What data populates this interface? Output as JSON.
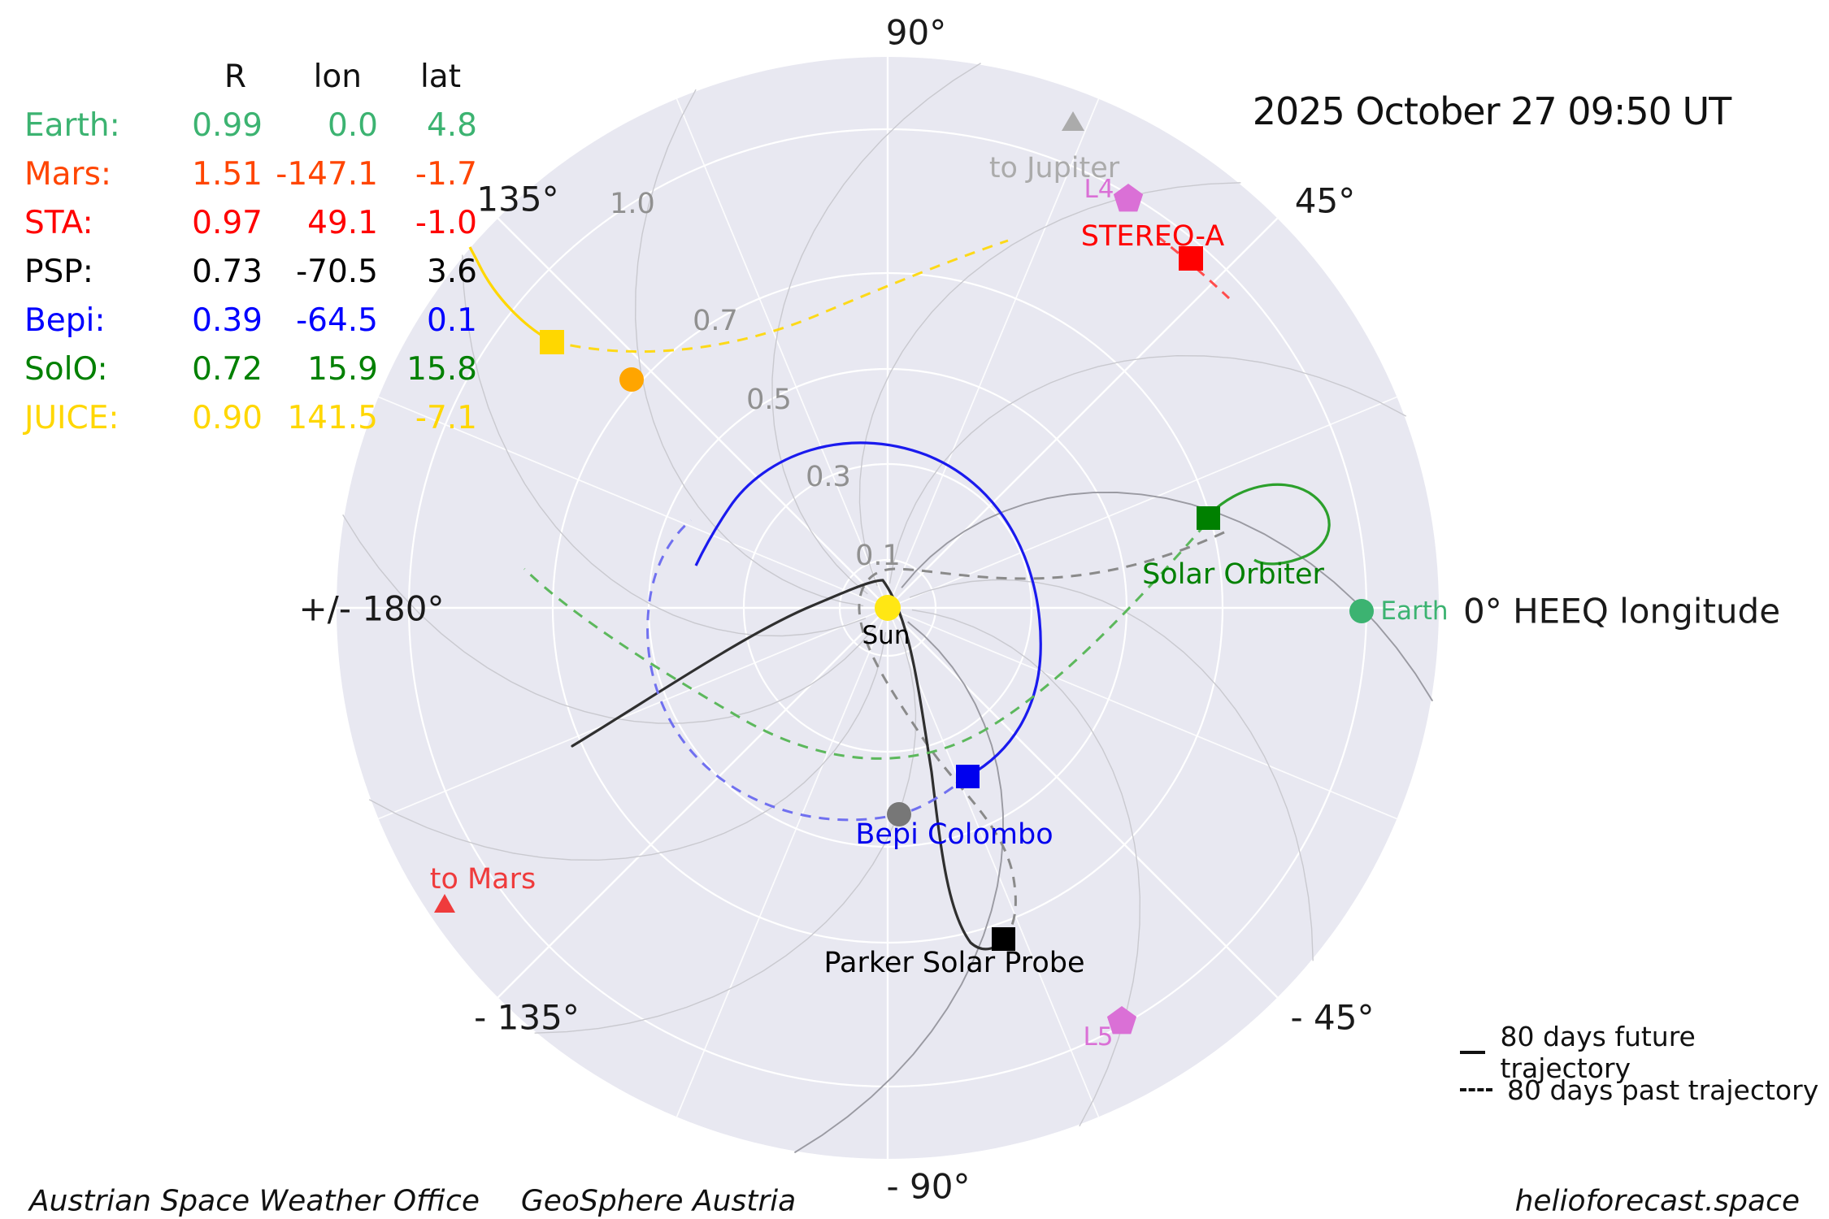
{
  "title": "2025 October 27  09:50 UT",
  "table": {
    "headers": {
      "r": "R",
      "lon": "lon",
      "lat": "lat"
    },
    "rows": [
      {
        "name": "Earth:",
        "r": "0.99",
        "lon": "0.0",
        "lat": "4.8",
        "color": "#3CB371"
      },
      {
        "name": "Mars:",
        "r": "1.51",
        "lon": "-147.1",
        "lat": "-1.7",
        "color": "#FF4500"
      },
      {
        "name": "STA:",
        "r": "0.97",
        "lon": "49.1",
        "lat": "-1.0",
        "color": "#FF0000"
      },
      {
        "name": "PSP:",
        "r": "0.73",
        "lon": "-70.5",
        "lat": "3.6",
        "color": "#000000"
      },
      {
        "name": "Bepi:",
        "r": "0.39",
        "lon": "-64.5",
        "lat": "0.1",
        "color": "#0000FF"
      },
      {
        "name": "SolO:",
        "r": "0.72",
        "lon": "15.9",
        "lat": "15.8",
        "color": "#008000"
      },
      {
        "name": "JUICE:",
        "r": "0.90",
        "lon": "141.5",
        "lat": "-7.1",
        "color": "#FFD700"
      }
    ]
  },
  "axis": {
    "angle_labels": [
      "90°",
      "45°",
      "135°",
      "+/- 180°",
      "- 135°",
      "- 45°",
      "- 90°"
    ],
    "axis_title": "0° HEEQ longitude",
    "radial_labels": [
      "0.1",
      "0.3",
      "0.5",
      "0.7",
      "1.0"
    ]
  },
  "objects": {
    "sun": {
      "label": "Sun",
      "color": "#FFE714",
      "label_color": "#000000"
    },
    "earth": {
      "label": "Earth",
      "color": "#3CB371"
    },
    "stereo_a": {
      "label": "STEREO-A",
      "color": "#FF0000",
      "past_color": "#FF4D4D"
    },
    "solo": {
      "label": "Solar Orbiter",
      "color": "#008000",
      "future_color": "#2CA02C",
      "past_color": "#5CB85C"
    },
    "bepi": {
      "label": "Bepi Colombo",
      "color": "#0000EE",
      "future_color": "#1A1AEE",
      "past_color": "#7070F0"
    },
    "psp": {
      "label": "Parker Solar Probe",
      "color": "#000000",
      "future_color": "#2F2F2F",
      "past_color": "#8A8A8A"
    },
    "juice": {
      "color": "#FFD700"
    },
    "venus": {
      "color": "#FFA500"
    },
    "mercury": {
      "color": "#777777"
    },
    "l4": {
      "label": "L4",
      "color": "#DA70D6"
    },
    "l5": {
      "label": "L5",
      "color": "#DA70D6"
    },
    "jupiter_dir": {
      "label": "to Jupiter",
      "color": "#ABABAB"
    },
    "mars_dir": {
      "label": "to Mars",
      "color": "#EF3B3C"
    }
  },
  "legend": {
    "items": [
      {
        "style": "solid",
        "label": "80 days future trajectory"
      },
      {
        "style": "dashed",
        "label": "80 days past trajectory"
      }
    ]
  },
  "footer": {
    "left1": "Austrian Space Weather Office",
    "left2": "GeoSphere Austria",
    "right": "helioforecast.space"
  },
  "colors": {
    "disc": "#E8E8F1",
    "grid": "#FFFFFF",
    "spiral": "#C9C9CF",
    "spiral_dark": "#9A9AA2"
  },
  "chart_data": {
    "type": "scatter",
    "projection": "polar",
    "title": "2025 October 27  09:50 UT",
    "units": {
      "r": "AU",
      "lon": "deg HEEQ longitude",
      "lat": "deg HEEQ latitude"
    },
    "r_ticks": [
      0.1,
      0.3,
      0.5,
      0.7,
      1.0
    ],
    "lon_ticks_deg": [
      0,
      45,
      90,
      135,
      180,
      -135,
      -90,
      -45
    ],
    "points": [
      {
        "name": "Earth",
        "r": 0.99,
        "lon": 0.0,
        "lat": 4.8
      },
      {
        "name": "Mars",
        "r": 1.51,
        "lon": -147.1,
        "lat": -1.7
      },
      {
        "name": "STEREO-A",
        "r": 0.97,
        "lon": 49.1,
        "lat": -1.0
      },
      {
        "name": "Parker Solar Probe",
        "r": 0.73,
        "lon": -70.5,
        "lat": 3.6
      },
      {
        "name": "Bepi Colombo",
        "r": 0.39,
        "lon": -64.5,
        "lat": 0.1
      },
      {
        "name": "Solar Orbiter",
        "r": 0.72,
        "lon": 15.9,
        "lat": 15.8
      },
      {
        "name": "JUICE",
        "r": 0.9,
        "lon": 141.5,
        "lat": -7.1
      },
      {
        "name": "L4",
        "r": 0.99,
        "lon": 60.0
      },
      {
        "name": "L5",
        "r": 0.99,
        "lon": -60.0
      }
    ],
    "legend": [
      "80 days future trajectory",
      "80 days past trajectory"
    ],
    "legend_position": "lower right",
    "grid": true
  }
}
